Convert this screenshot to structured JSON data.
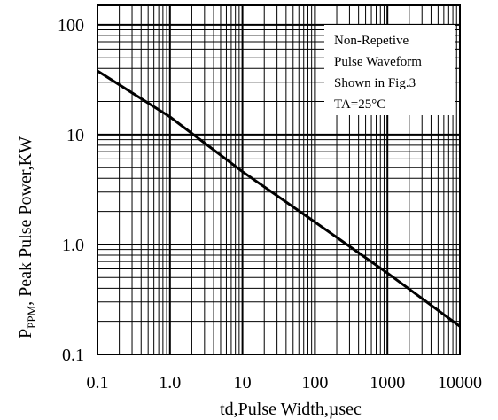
{
  "chart_data": {
    "type": "line",
    "xlabel": "td,Pulse Width,µsec",
    "ylabel_main": "P",
    "ylabel_sub": "PPM",
    "ylabel_rest": ", Peak Pulse Power,KW",
    "x_scale": "log",
    "y_scale": "log",
    "xlim": [
      0.1,
      10000
    ],
    "ylim": [
      0.1,
      150
    ],
    "grid": true,
    "x_tick_labels": [
      "0.1",
      "1.0",
      "10",
      "100",
      "1000",
      "10000"
    ],
    "y_tick_labels": [
      "0.1",
      "1.0",
      "10",
      "100"
    ],
    "legend_box": {
      "position": "top-right",
      "lines": [
        "Non-Repetive",
        "Pulse Waveform",
        "Shown in Fig.3",
        "TA=25°C"
      ]
    },
    "series": [
      {
        "x": [
          0.1,
          1,
          10,
          100,
          1000,
          10000
        ],
        "y": [
          38,
          14.5,
          4.6,
          1.6,
          0.55,
          0.18
        ]
      }
    ]
  }
}
